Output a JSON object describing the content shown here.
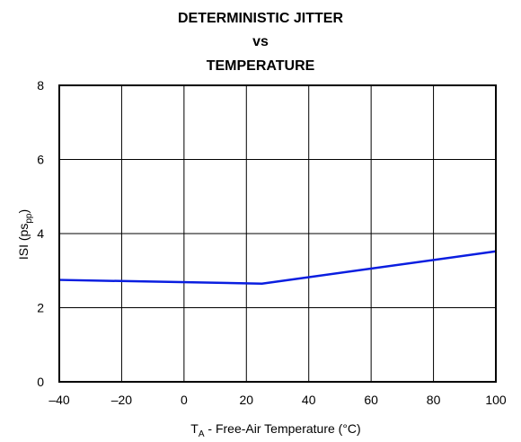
{
  "chart_data": {
    "type": "line",
    "title_lines": [
      "DETERMINISTIC JITTER",
      "vs",
      "TEMPERATURE"
    ],
    "xlabel": {
      "prefix": "T",
      "sub": "A",
      "rest": " - Free-Air Temperature (°C)"
    },
    "ylabel": {
      "prefix": "ISI (ps",
      "sub": "pp",
      "suffix": ")"
    },
    "xlim": [
      -40,
      100
    ],
    "ylim": [
      0,
      8
    ],
    "x_ticks": [
      -40,
      -20,
      0,
      20,
      40,
      60,
      80,
      100
    ],
    "x_tick_labels": [
      "–40",
      "–20",
      "0",
      "20",
      "40",
      "60",
      "80",
      "100"
    ],
    "y_ticks": [
      0,
      2,
      4,
      6,
      8
    ],
    "y_tick_labels": [
      "0",
      "2",
      "4",
      "6",
      "8"
    ],
    "grid": true,
    "series": [
      {
        "color": "#0a1ee0",
        "x": [
          -40,
          25,
          100
        ],
        "y": [
          2.75,
          2.65,
          3.52
        ]
      }
    ]
  }
}
